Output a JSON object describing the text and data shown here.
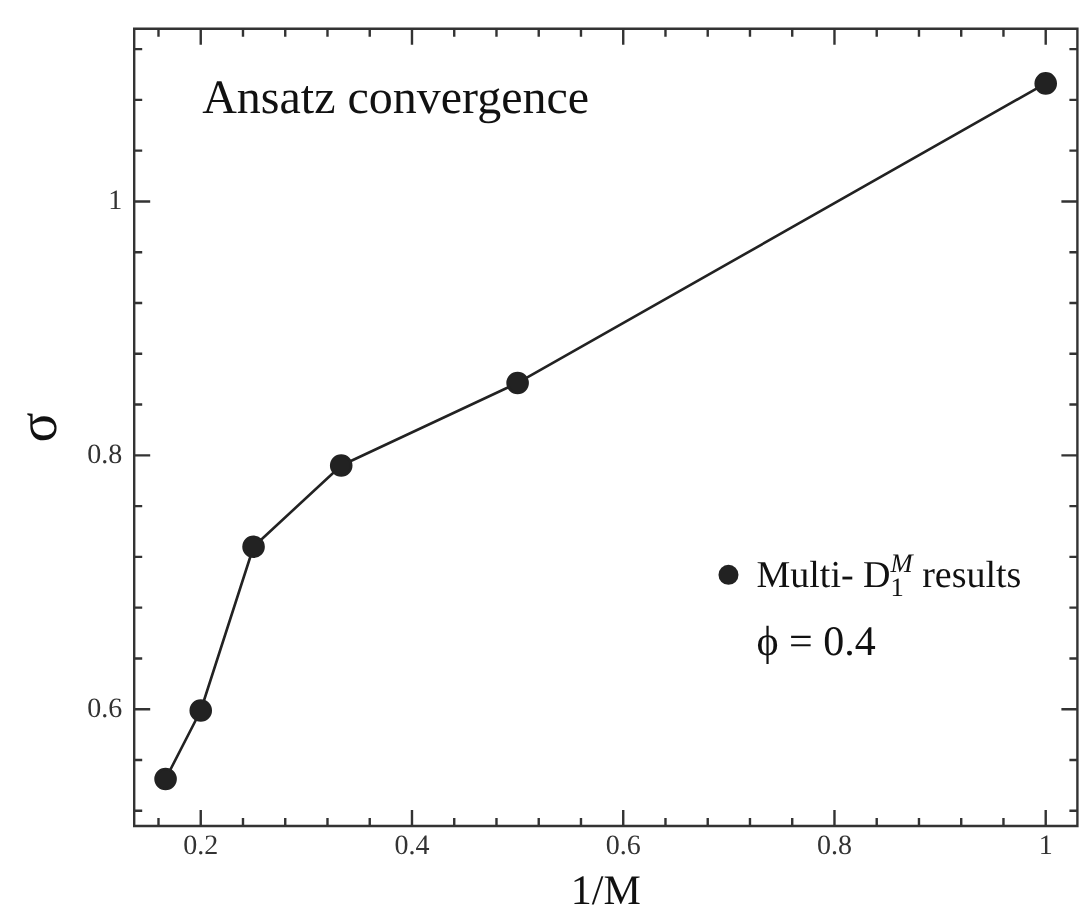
{
  "chart_data": {
    "type": "line",
    "title": "Ansatz convergence",
    "xlabel": "1/M",
    "ylabel": "σ",
    "x": [
      0.1667,
      0.2,
      0.25,
      0.333,
      0.5,
      1
    ],
    "series": [
      {
        "name": "Multi- D$_{1}$$^{M}$ results",
        "color": "#222222",
        "values": [
          0.545,
          0.599,
          0.728,
          0.792,
          0.857,
          1.093
        ]
      }
    ],
    "xlim": [
      0.137,
      1.03
    ],
    "ylim": [
      0.508,
      1.136
    ],
    "xticks": [
      {
        "value": 0.16,
        "label": null
      },
      0.2,
      {
        "value": 0.24,
        "label": null
      },
      {
        "value": 0.28,
        "label": null
      },
      {
        "value": 0.32,
        "label": null
      },
      {
        "value": 0.36,
        "label": null
      },
      0.4,
      {
        "value": 0.44,
        "label": null
      },
      {
        "value": 0.48,
        "label": null
      },
      {
        "value": 0.52,
        "label": null
      },
      {
        "value": 0.56,
        "label": null
      },
      0.6,
      {
        "value": 0.64,
        "label": null
      },
      {
        "value": 0.68,
        "label": null
      },
      {
        "value": 0.72,
        "label": null
      },
      {
        "value": 0.76,
        "label": null
      },
      0.8,
      {
        "value": 0.84,
        "label": null
      },
      {
        "value": 0.88,
        "label": null
      },
      {
        "value": 0.92,
        "label": null
      },
      {
        "value": 0.96,
        "label": null
      },
      1
    ],
    "yticks": [
      {
        "value": 0.52,
        "label": null
      },
      {
        "value": 0.56,
        "label": null
      },
      0.6,
      {
        "value": 0.64,
        "label": null
      },
      {
        "value": 0.68,
        "label": null
      },
      {
        "value": 0.72,
        "label": null
      },
      {
        "value": 0.76,
        "label": null
      },
      0.8,
      {
        "value": 0.84,
        "label": null
      },
      {
        "value": 0.88,
        "label": null
      },
      {
        "value": 0.92,
        "label": null
      },
      {
        "value": 0.96,
        "label": null
      },
      1,
      {
        "value": 1.04,
        "label": null
      },
      {
        "value": 1.08,
        "label": null
      },
      {
        "value": 1.12,
        "label": null
      }
    ],
    "annotations": [
      "ϕ = 0.4"
    ],
    "legend": "bottom right",
    "marker": "circle",
    "line_style": "solid",
    "grid": false
  }
}
